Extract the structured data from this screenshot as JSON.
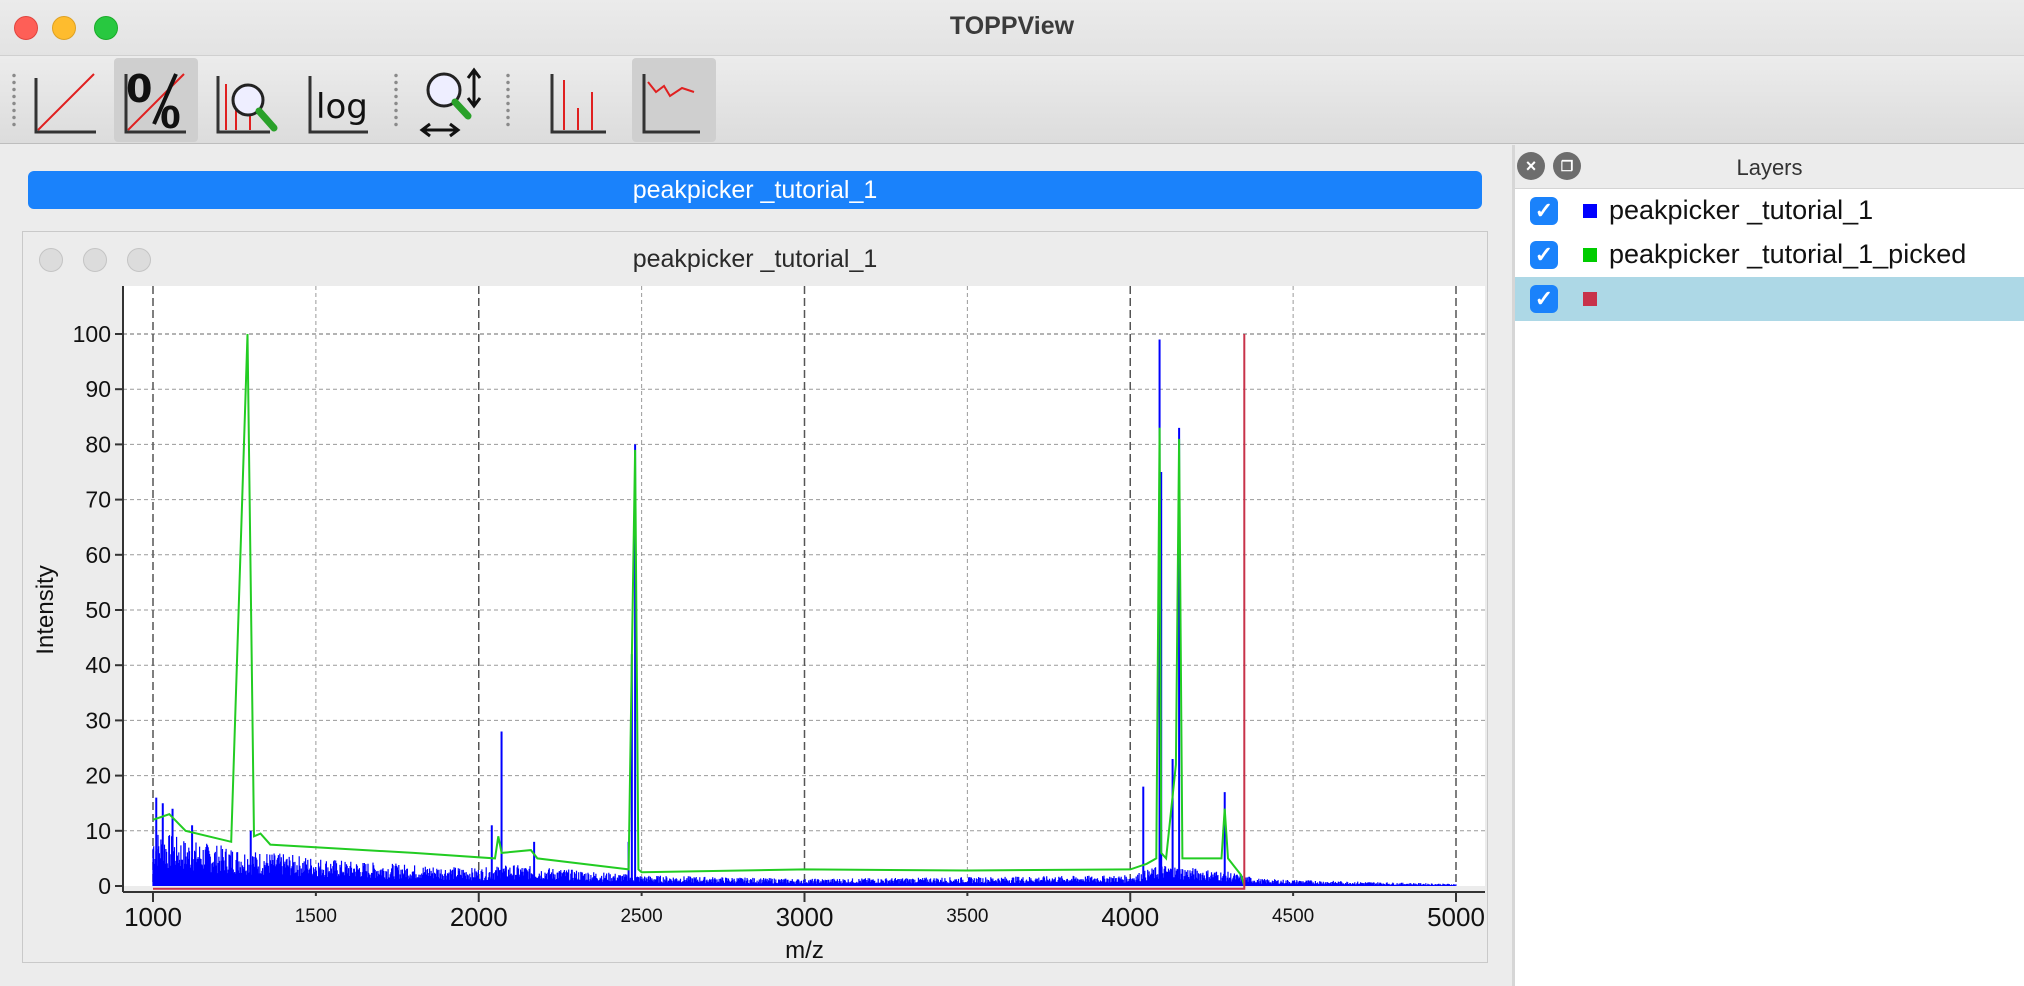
{
  "window": {
    "title": "TOPPView"
  },
  "toolbar": {
    "buttons": [
      {
        "name": "linear-intensity-icon",
        "active": false
      },
      {
        "name": "percentage-intensity-icon",
        "active": true
      },
      {
        "name": "snap-intensity-icon",
        "active": false
      },
      {
        "name": "log-intensity-icon",
        "active": false,
        "label": "log"
      },
      {
        "name": "zoom-reset-icon",
        "active": false
      },
      {
        "name": "draw-sticks-icon",
        "active": false
      },
      {
        "name": "draw-lines-icon",
        "active": true
      }
    ]
  },
  "tab": {
    "label": "peakpicker _tutorial_1"
  },
  "spectrum_window": {
    "title": "peakpicker _tutorial_1"
  },
  "layers_panel": {
    "title": "Layers",
    "layers": [
      {
        "label": "peakpicker _tutorial_1",
        "color": "#0000ff",
        "checked": true,
        "selected": false
      },
      {
        "label": "peakpicker _tutorial_1_picked",
        "color": "#00cc00",
        "checked": true,
        "selected": false
      },
      {
        "label": "",
        "color": "#c8324a",
        "checked": true,
        "selected": true
      }
    ]
  },
  "chart_data": {
    "type": "line",
    "xlabel": "m/z",
    "ylabel": "Intensity",
    "xlim": [
      1000,
      5000
    ],
    "ylim": [
      0,
      100
    ],
    "x_ticks_major": [
      "1000",
      "2000",
      "3000",
      "4000",
      "5000"
    ],
    "x_ticks_minor": [
      "1500",
      "2500",
      "3500",
      "4500"
    ],
    "y_ticks": [
      "0",
      "10",
      "20",
      "30",
      "40",
      "50",
      "60",
      "70",
      "80",
      "90",
      "100"
    ],
    "grid": true,
    "series": [
      {
        "name": "peakpicker _tutorial_1",
        "color": "#0000ff",
        "style": "profile",
        "baseline": [
          [
            1000,
            8
          ],
          [
            1100,
            6.5
          ],
          [
            1300,
            5
          ],
          [
            1600,
            3.5
          ],
          [
            2000,
            2.5
          ],
          [
            2100,
            3
          ],
          [
            2500,
            1.5
          ],
          [
            3000,
            1
          ],
          [
            4000,
            1.5
          ],
          [
            4100,
            3
          ],
          [
            4300,
            2
          ],
          [
            4400,
            1
          ],
          [
            4800,
            0.5
          ],
          [
            5000,
            0.3
          ]
        ],
        "peaks": [
          [
            1010,
            16
          ],
          [
            1030,
            15
          ],
          [
            1060,
            14
          ],
          [
            1120,
            11
          ],
          [
            1300,
            10
          ],
          [
            2040,
            11
          ],
          [
            2070,
            28
          ],
          [
            2170,
            8
          ],
          [
            2460,
            8
          ],
          [
            2470,
            42
          ],
          [
            2480,
            80
          ],
          [
            4040,
            18
          ],
          [
            4090,
            99
          ],
          [
            4095,
            75
          ],
          [
            4130,
            23
          ],
          [
            4150,
            83
          ],
          [
            4290,
            17
          ]
        ]
      },
      {
        "name": "peakpicker _tutorial_1_picked",
        "color": "#22cc22",
        "style": "line",
        "points": [
          [
            1000,
            12
          ],
          [
            1050,
            13
          ],
          [
            1100,
            10
          ],
          [
            1240,
            8
          ],
          [
            1290,
            100
          ],
          [
            1310,
            9
          ],
          [
            1330,
            9.5
          ],
          [
            1360,
            7.5
          ],
          [
            1800,
            6
          ],
          [
            2050,
            5
          ],
          [
            2060,
            9
          ],
          [
            2070,
            6
          ],
          [
            2160,
            6.5
          ],
          [
            2180,
            5
          ],
          [
            2460,
            3
          ],
          [
            2470,
            42
          ],
          [
            2480,
            79
          ],
          [
            2490,
            3
          ],
          [
            2500,
            2.5
          ],
          [
            3000,
            3
          ],
          [
            3500,
            2.8
          ],
          [
            4000,
            3
          ],
          [
            4050,
            4
          ],
          [
            4080,
            5
          ],
          [
            4090,
            83
          ],
          [
            4095,
            6
          ],
          [
            4110,
            5
          ],
          [
            4140,
            22
          ],
          [
            4150,
            81
          ],
          [
            4160,
            5
          ],
          [
            4280,
            5
          ],
          [
            4290,
            14
          ],
          [
            4300,
            5
          ],
          [
            4340,
            2
          ],
          [
            4350,
            0
          ]
        ]
      },
      {
        "name": "",
        "color": "#c8324a",
        "style": "line",
        "points": [
          [
            1000,
            -0.5
          ],
          [
            4350,
            -0.5
          ],
          [
            4350,
            100
          ]
        ]
      }
    ]
  }
}
